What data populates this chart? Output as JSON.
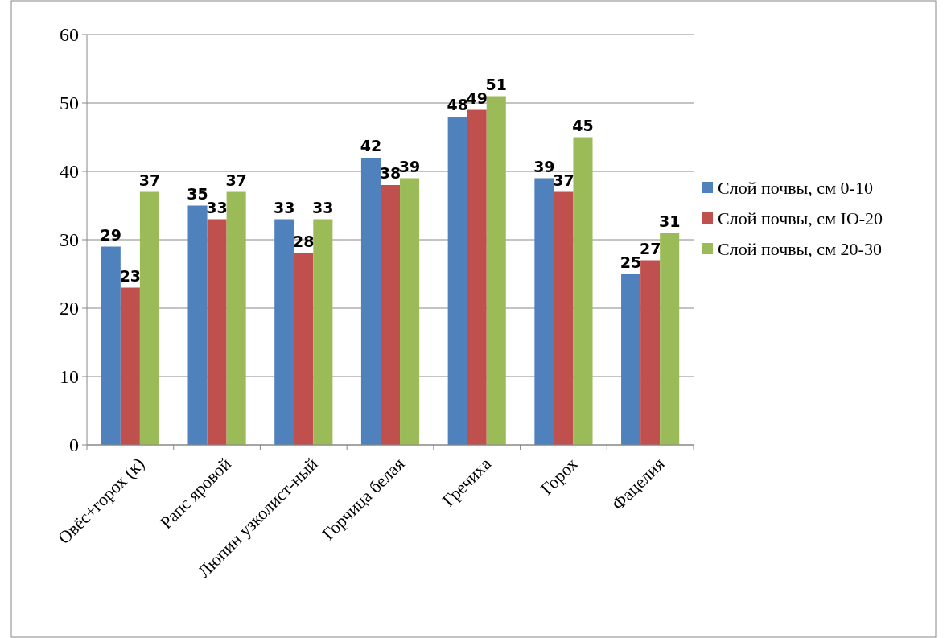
{
  "chart_data": {
    "type": "bar",
    "categories": [
      "Овёс+горох (к)",
      "Рапс яровой",
      "Люпин узколист-ный",
      "Горчица белая",
      "Гречиха",
      "Горох",
      "Фацелия"
    ],
    "series": [
      {
        "name": "Слой почвы, см 0-10",
        "color": "#4f81bd",
        "values": [
          29,
          35,
          33,
          42,
          48,
          39,
          25
        ]
      },
      {
        "name": "Слой почвы, см IO-20",
        "color": "#c0504d",
        "values": [
          23,
          33,
          28,
          38,
          49,
          37,
          27
        ]
      },
      {
        "name": "Слой почвы, см 20-30",
        "color": "#9bbb59",
        "values": [
          37,
          37,
          33,
          39,
          51,
          45,
          31
        ]
      }
    ],
    "ylim": [
      0,
      60
    ],
    "yticks": [
      0,
      10,
      20,
      30,
      40,
      50,
      60
    ],
    "grid": "y",
    "legend": "right",
    "data_labels": true
  }
}
